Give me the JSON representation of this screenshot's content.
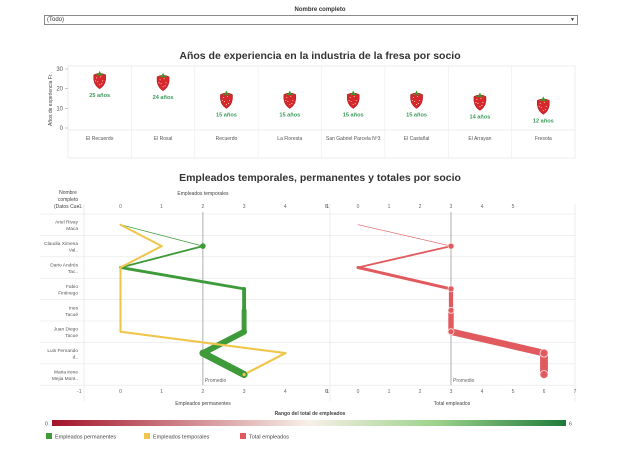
{
  "filter": {
    "label": "Nombre completo",
    "value": "(Todo)"
  },
  "chart_data": [
    {
      "type": "bar",
      "title": "Años de experiencia en la industria de la fresa por socio",
      "ylabel": "Años de experiencia Fr..",
      "ylim": [
        0,
        30
      ],
      "yticks": [
        "0",
        "10",
        "20",
        "30"
      ],
      "categories": [
        "El Recuerdo",
        "El Rosal",
        "Recuerdo",
        "La Floresta",
        "San Gabriel Parcela Nº3",
        "El Castañal",
        "El Arrayan",
        "Fresota"
      ],
      "values": [
        25,
        24,
        15,
        15,
        15,
        15,
        14,
        12
      ],
      "labels": [
        "25 años",
        "24 años",
        "15 años",
        "15 años",
        "15 años",
        "15 años",
        "14 años",
        "12 años"
      ],
      "marker": "strawberry-icon"
    },
    {
      "type": "line",
      "title": "Empleados temporales, permanentes y totales por socio",
      "row_header": "Nombre completo (Datos Cue..",
      "categories": [
        "Ariel Rivay Maca",
        "Claudia Ximena Val..",
        "Dario Andrés Tac..",
        "Fabio Fintinego",
        "Ines Tacué",
        "Juan Diego Tacue",
        "Luis Fernando d..",
        "Maria irene Mejia Mont.."
      ],
      "left_panel": {
        "top_axis_label": "Empleados temporales",
        "bottom_axis_label": "Empleados permanentes",
        "xlim": [
          -1,
          5
        ],
        "ticks": [
          "-1",
          "0",
          "1",
          "2",
          "3",
          "4",
          "5"
        ],
        "average": 2,
        "average_label": "Promedio",
        "series": [
          {
            "name": "Empleados permanentes",
            "values": [
              0,
              2,
              0,
              3,
              3,
              3,
              2,
              3
            ]
          },
          {
            "name": "Empleados temporales",
            "values": [
              0,
              1,
              0,
              0,
              0,
              0,
              4,
              3
            ]
          }
        ]
      },
      "right_panel": {
        "bottom_axis_label": "Total empleados",
        "xlim": [
          -1,
          7
        ],
        "top_ticks": [
          "-1",
          "0",
          "1",
          "2",
          "3",
          "4",
          "5"
        ],
        "bottom_ticks": [
          "-1",
          "0",
          "1",
          "2",
          "3",
          "4",
          "5",
          "6",
          "7"
        ],
        "average": 3,
        "average_label": "Promedio",
        "series": [
          {
            "name": "Total empleados",
            "values": [
              0,
              3,
              0,
              3,
              3,
              3,
              6,
              6
            ]
          }
        ]
      },
      "color_range": {
        "label": "Rango del total de empleados",
        "min": "0",
        "max": "6"
      },
      "legend": [
        {
          "name": "Empleados permanentes",
          "color": "#3f9a3a"
        },
        {
          "name": "Empleados temporales",
          "color": "#f0c54c"
        },
        {
          "name": "Total empleados",
          "color": "#e05a5e"
        }
      ],
      "colors": {
        "permanentes": "#3f9a3a",
        "temporales": "#f0c54c",
        "total": "#e05a5e"
      }
    }
  ]
}
